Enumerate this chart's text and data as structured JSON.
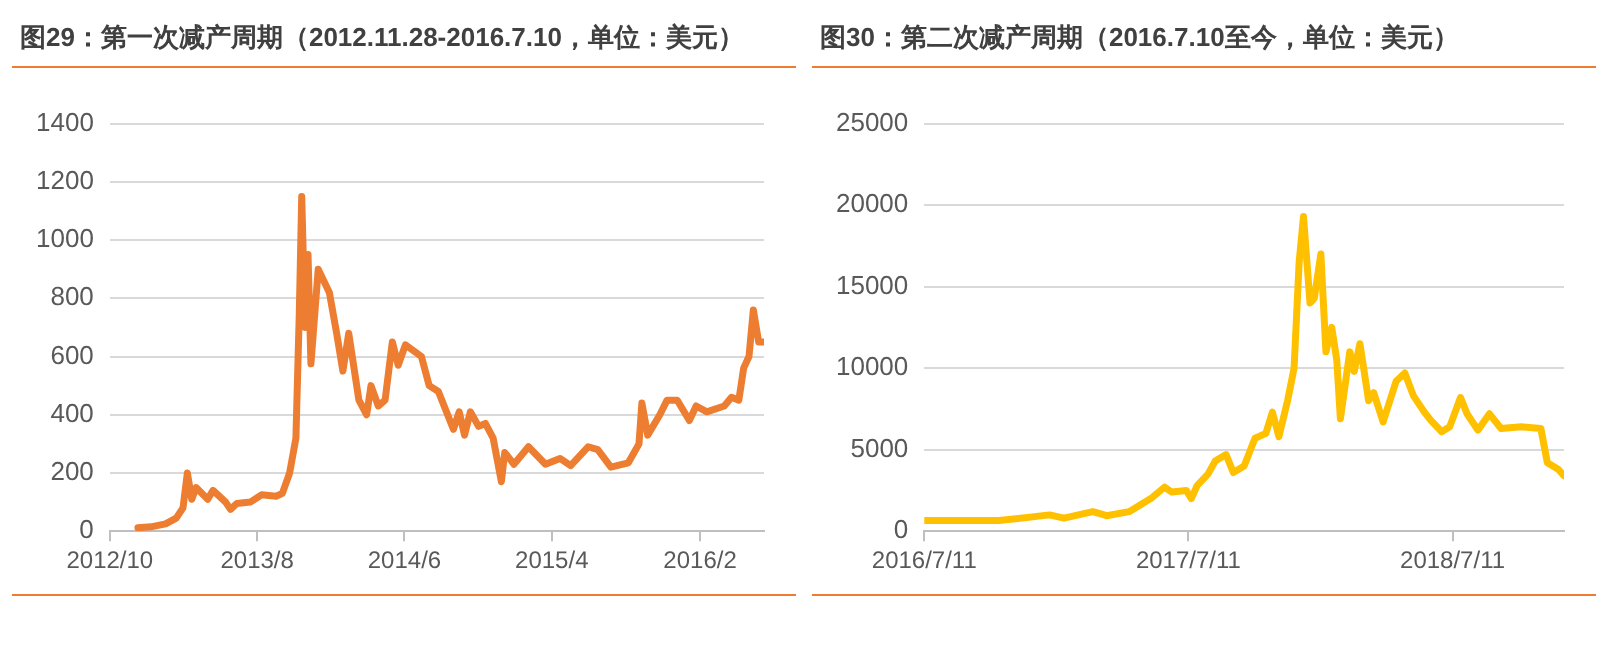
{
  "chart_data": [
    {
      "type": "line",
      "title": "图29：第一次减产周期（2012.11.28-2016.7.10，单位：美元）",
      "color": "#ed7d31",
      "grid": "y",
      "legend": false,
      "marker": "none",
      "line_style": "solid",
      "xlim": [
        "2012-10-01",
        "2016-06-12"
      ],
      "xticks": [
        {
          "value": "2012-10-01",
          "label": "2012/10"
        },
        {
          "value": "2013-08-01",
          "label": "2013/8"
        },
        {
          "value": "2014-06-01",
          "label": "2014/6"
        },
        {
          "value": "2015-04-01",
          "label": "2015/4"
        },
        {
          "value": "2016-02-01",
          "label": "2016/2"
        }
      ],
      "ylim": [
        0,
        1400
      ],
      "yticks": [
        0,
        200,
        400,
        600,
        800,
        1000,
        1200,
        1400
      ],
      "x": [
        "2012-11-28",
        "2012-12-25",
        "2013-01-24",
        "2013-02-15",
        "2013-03-01",
        "2013-03-10",
        "2013-03-19",
        "2013-03-28",
        "2013-04-21",
        "2013-05-02",
        "2013-05-28",
        "2013-06-07",
        "2013-06-20",
        "2013-07-18",
        "2013-08-10",
        "2013-09-09",
        "2013-09-22",
        "2013-10-07",
        "2013-10-20",
        "2013-10-27",
        "2013-11-01",
        "2013-11-08",
        "2013-11-14",
        "2013-11-20",
        "2013-12-05",
        "2013-12-28",
        "2014-01-12",
        "2014-01-25",
        "2014-02-06",
        "2014-02-27",
        "2014-03-15",
        "2014-03-24",
        "2014-04-08",
        "2014-04-22",
        "2014-05-07",
        "2014-05-19",
        "2014-06-03",
        "2014-07-06",
        "2014-07-22",
        "2014-08-10",
        "2014-09-10",
        "2014-09-22",
        "2014-10-03",
        "2014-10-15",
        "2014-11-01",
        "2014-11-15",
        "2014-12-01",
        "2014-12-18",
        "2014-12-25",
        "2015-01-13",
        "2015-02-12",
        "2015-03-19",
        "2015-04-18",
        "2015-05-10",
        "2015-06-15",
        "2015-07-05",
        "2015-08-01",
        "2015-09-06",
        "2015-09-28",
        "2015-10-04",
        "2015-10-16",
        "2015-11-10",
        "2015-11-25",
        "2015-12-16",
        "2016-01-10",
        "2016-01-24",
        "2016-02-15",
        "2016-03-22",
        "2016-04-06",
        "2016-04-21",
        "2016-05-01",
        "2016-05-12",
        "2016-05-21",
        "2016-06-01",
        "2016-06-10"
      ],
      "values": [
        12,
        15,
        25,
        45,
        80,
        200,
        110,
        150,
        110,
        140,
        100,
        75,
        95,
        100,
        125,
        120,
        130,
        200,
        320,
        750,
        1150,
        700,
        950,
        575,
        900,
        820,
        680,
        550,
        680,
        450,
        400,
        500,
        430,
        450,
        650,
        570,
        640,
        600,
        500,
        480,
        350,
        410,
        330,
        410,
        360,
        370,
        320,
        170,
        270,
        230,
        290,
        230,
        250,
        225,
        290,
        280,
        220,
        235,
        300,
        440,
        330,
        400,
        450,
        450,
        380,
        430,
        410,
        430,
        460,
        450,
        560,
        600,
        760,
        650,
        650
      ]
    },
    {
      "type": "line",
      "title": "图30：第二次减产周期（2016.7.10至今，单位：美元）",
      "color": "#ffc000",
      "grid": "y",
      "legend": false,
      "marker": "none",
      "line_style": "solid",
      "xlim": [
        "2016-07-11",
        "2018-12-12"
      ],
      "xticks": [
        {
          "value": "2016-07-11",
          "label": "2016/7/11"
        },
        {
          "value": "2017-07-11",
          "label": "2017/7/11"
        },
        {
          "value": "2018-07-11",
          "label": "2018/7/11"
        }
      ],
      "ylim": [
        0,
        25000
      ],
      "yticks": [
        0,
        5000,
        10000,
        15000,
        20000,
        25000
      ],
      "x": [
        "2016-07-11",
        "2016-10-22",
        "2016-12-31",
        "2017-01-20",
        "2017-03-01",
        "2017-03-20",
        "2017-04-20",
        "2017-05-20",
        "2017-06-08",
        "2017-06-18",
        "2017-07-08",
        "2017-07-15",
        "2017-07-23",
        "2017-08-07",
        "2017-08-17",
        "2017-09-01",
        "2017-09-11",
        "2017-09-26",
        "2017-10-11",
        "2017-10-26",
        "2017-11-04",
        "2017-11-13",
        "2017-11-25",
        "2017-12-04",
        "2017-12-11",
        "2017-12-17",
        "2017-12-26",
        "2018-01-01",
        "2018-01-10",
        "2018-01-17",
        "2018-01-25",
        "2018-02-01",
        "2018-02-06",
        "2018-02-19",
        "2018-02-25",
        "2018-03-05",
        "2018-03-17",
        "2018-03-24",
        "2018-04-06",
        "2018-04-24",
        "2018-05-06",
        "2018-05-18",
        "2018-06-02",
        "2018-06-11",
        "2018-06-26",
        "2018-07-07",
        "2018-07-22",
        "2018-07-31",
        "2018-08-15",
        "2018-08-31",
        "2018-09-16",
        "2018-10-14",
        "2018-11-10",
        "2018-11-19",
        "2018-12-04",
        "2018-12-12"
      ],
      "values": [
        650,
        650,
        1000,
        800,
        1200,
        950,
        1200,
        2000,
        2700,
        2400,
        2500,
        2000,
        2800,
        3500,
        4300,
        4700,
        3600,
        4000,
        5700,
        6000,
        7300,
        5800,
        8000,
        10000,
        16500,
        19300,
        14000,
        14300,
        17000,
        11000,
        12500,
        10500,
        6900,
        11000,
        9800,
        11500,
        8000,
        8500,
        6700,
        9200,
        9700,
        8300,
        7300,
        6800,
        6100,
        6400,
        8200,
        7200,
        6200,
        7200,
        6300,
        6400,
        6300,
        4200,
        3800,
        3400
      ]
    }
  ]
}
